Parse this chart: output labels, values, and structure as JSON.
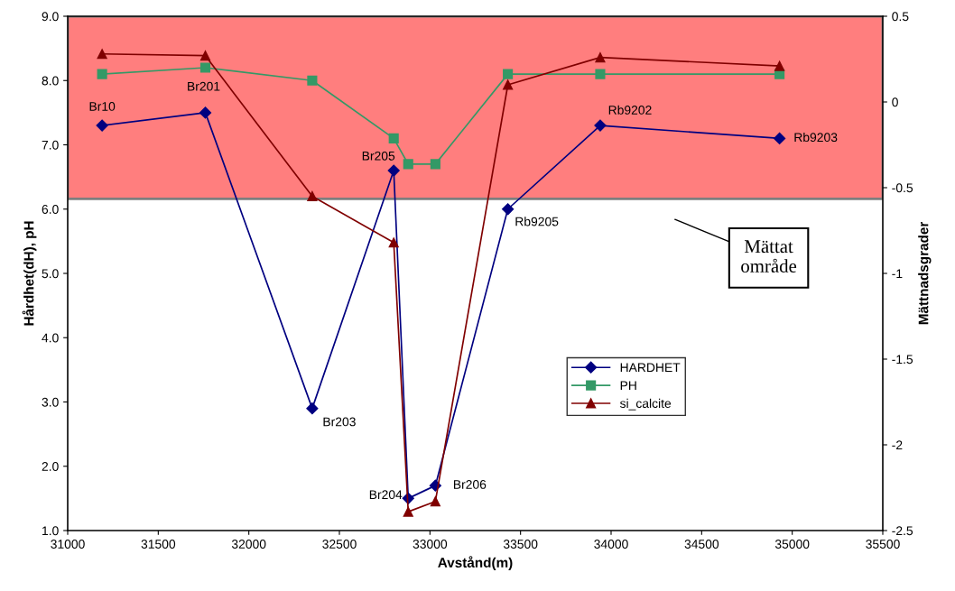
{
  "chart_data": {
    "type": "line",
    "xlabel": "Avstånd(m)",
    "ylabel": "Hårdhet(dH), pH",
    "y2label": "Mättnadsgrader",
    "x": [
      31190,
      31760,
      32350,
      32800,
      32880,
      33030,
      33430,
      33940,
      34930
    ],
    "series": [
      {
        "name": "HARDHET",
        "color": "#000080",
        "marker": "diamond",
        "values": [
          7.3,
          7.5,
          2.9,
          6.6,
          1.5,
          1.7,
          6.0,
          7.3,
          7.1
        ]
      },
      {
        "name": "PH",
        "color": "#339966",
        "marker": "square",
        "values": [
          8.1,
          8.2,
          8.0,
          7.1,
          6.7,
          6.7,
          8.1,
          8.1,
          8.1
        ]
      },
      {
        "name": "si_calcite",
        "color": "#800000",
        "marker": "triangle",
        "axis": "y2",
        "values": [
          0.28,
          0.27,
          -0.55,
          -0.82,
          -2.39,
          -2.33,
          0.1,
          0.26,
          0.21
        ]
      }
    ],
    "xlim": [
      31000,
      35500
    ],
    "xticks": [
      31000,
      31500,
      32000,
      32500,
      33000,
      33500,
      34000,
      34500,
      35000,
      35500
    ],
    "ylim": [
      1.0,
      9.0
    ],
    "yticks": [
      {
        "value": 1,
        "label": "1.0"
      },
      {
        "value": 2,
        "label": "2.0"
      },
      {
        "value": 3,
        "label": "3.0"
      },
      {
        "value": 4,
        "label": "4.0"
      },
      {
        "value": 5,
        "label": "5.0"
      },
      {
        "value": 6,
        "label": "6.0"
      },
      {
        "value": 7,
        "label": "7.0"
      },
      {
        "value": 8,
        "label": "8.0"
      },
      {
        "value": 9,
        "label": "9.0"
      }
    ],
    "y2lim": [
      -2.5,
      0.5
    ],
    "y2ticks": [
      {
        "value": -2.5,
        "label": "-2.5"
      },
      {
        "value": -2,
        "label": "-2"
      },
      {
        "value": -1.5,
        "label": "-1.5"
      },
      {
        "value": -1,
        "label": "-1"
      },
      {
        "value": -0.5,
        "label": "-0.5"
      },
      0,
      0.5
    ],
    "bands": [
      {
        "axis": "y",
        "from": 6.16,
        "to": 9.0,
        "color": "#ff0000",
        "label": "Mättat\nområde"
      }
    ],
    "annotations": [
      {
        "text": "Br10",
        "x": 31190,
        "y": 7.3
      },
      {
        "text": "Br201",
        "x": 31760,
        "y": 7.5
      },
      {
        "text": "Br203",
        "x": 32350,
        "y": 2.9
      },
      {
        "text": "Br205",
        "x": 32800,
        "y": 6.6
      },
      {
        "text": "Br204",
        "x": 32880,
        "y": 1.5
      },
      {
        "text": "Br206",
        "x": 33030,
        "y": 1.7
      },
      {
        "text": "Rb9205",
        "x": 33430,
        "y": 6.0
      },
      {
        "text": "Rb9202",
        "x": 33940,
        "y": 7.3
      },
      {
        "text": "Rb9203",
        "x": 34930,
        "y": 7.1
      }
    ],
    "legend": "right",
    "grid": false
  }
}
